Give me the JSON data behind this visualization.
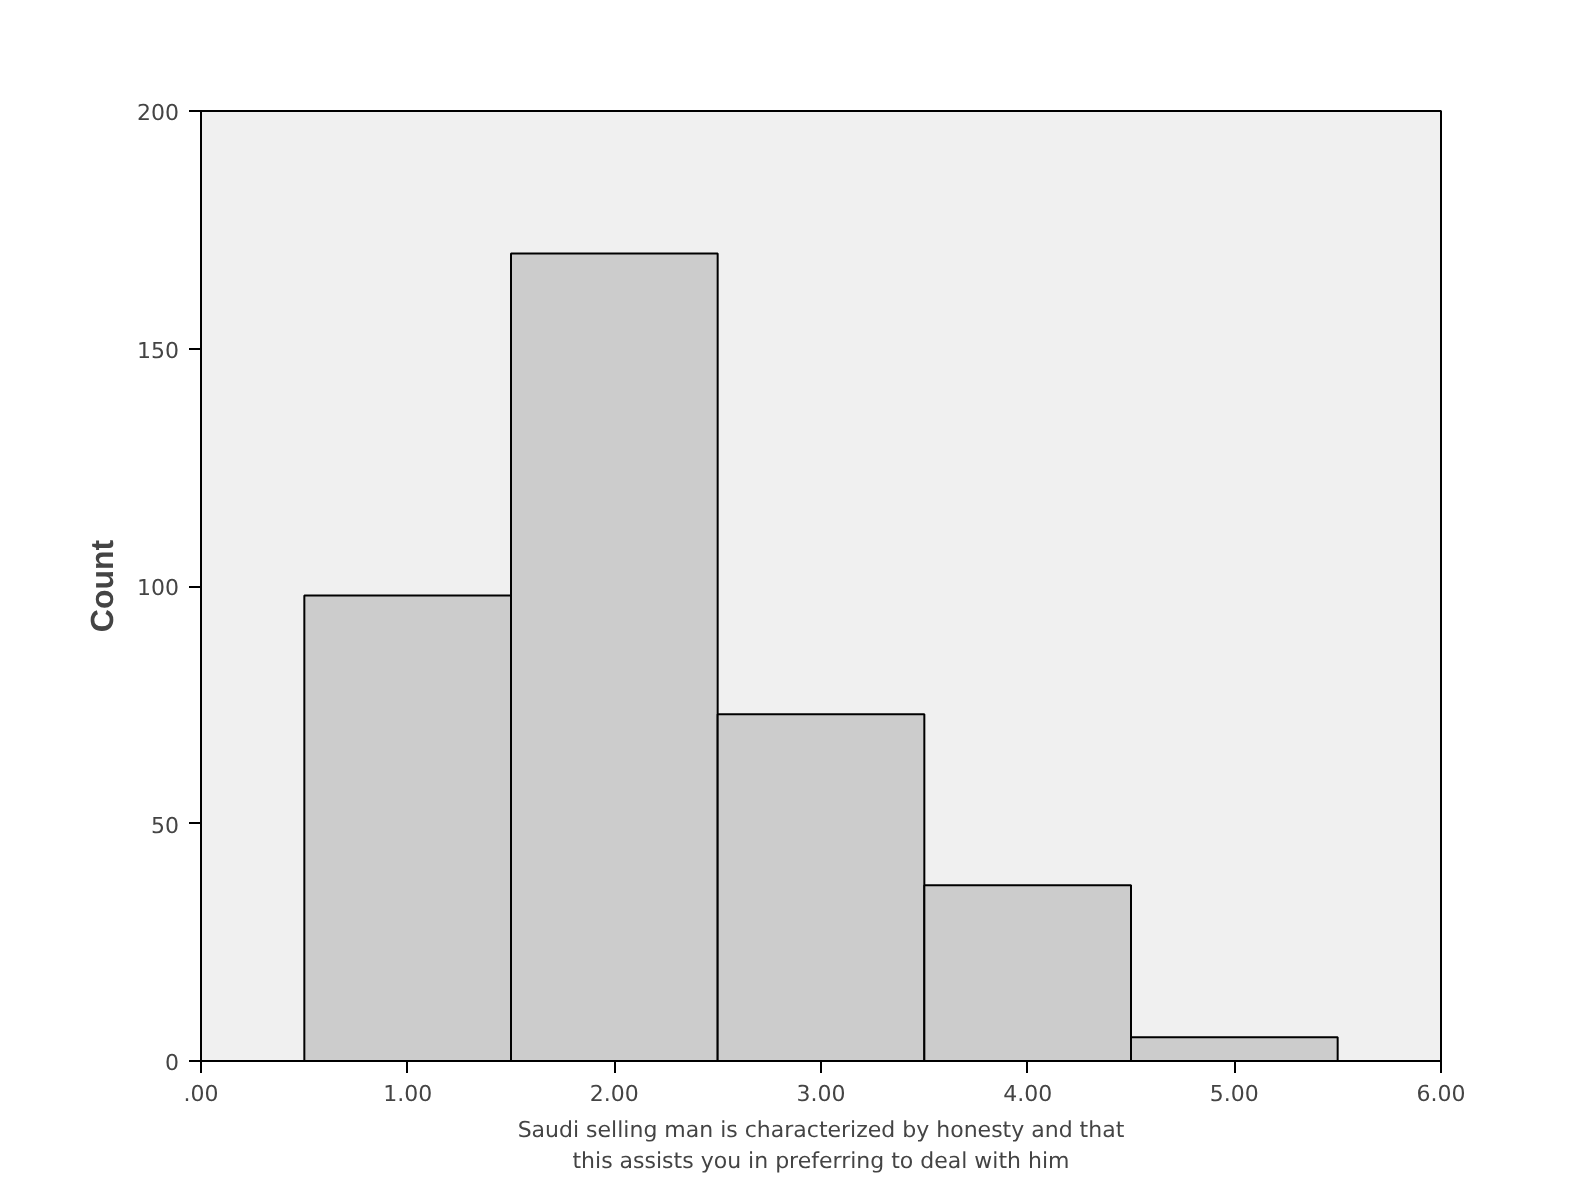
{
  "chart_data": {
    "type": "histogram",
    "bins": [
      0.5,
      1.5,
      2.5,
      3.5,
      4.5,
      5.5
    ],
    "values": [
      98,
      170,
      73,
      37,
      5
    ],
    "color": "#cccccc",
    "xlabel": "Saudi selling man is characterized by honesty and that\nthis assists you in preferring to deal with him",
    "ylabel": "Count",
    "xlim": [
      0,
      6
    ],
    "xticks": [
      {
        "value": 0,
        "label": ".00"
      },
      {
        "value": 1,
        "label": "1.00"
      },
      {
        "value": 2,
        "label": "2.00"
      },
      {
        "value": 3,
        "label": "3.00"
      },
      {
        "value": 4,
        "label": "4.00"
      },
      {
        "value": 5,
        "label": "5.00"
      },
      {
        "value": 6,
        "label": "6.00"
      }
    ],
    "ylim": [
      0,
      200
    ],
    "yticks": [
      0,
      50,
      100,
      150,
      200
    ],
    "grid": false
  }
}
